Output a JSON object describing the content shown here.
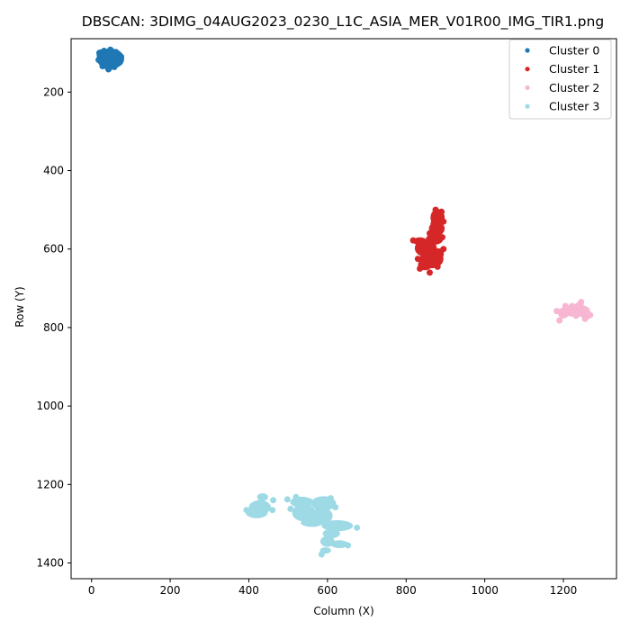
{
  "chart_data": {
    "type": "scatter",
    "title": "DBSCAN: 3DIMG_04AUG2023_0230_L1C_ASIA_MER_V01R00_IMG_TIR1.png",
    "xlabel": "Column (X)",
    "ylabel": "Row (Y)",
    "xlim": [
      -52,
      1335
    ],
    "ylim": [
      1440,
      64
    ],
    "y_inverted": true,
    "x_ticks": [
      0,
      200,
      400,
      600,
      800,
      1000,
      1200
    ],
    "y_ticks": [
      200,
      400,
      600,
      800,
      1000,
      1200,
      1400
    ],
    "grid": false,
    "legend_position": "top-right",
    "series": [
      {
        "name": "Cluster 0",
        "color": "#1f77b4",
        "blobs": [
          {
            "x": 48,
            "y": 115,
            "rx": 35,
            "ry": 26
          },
          {
            "x": 25,
            "y": 105,
            "rx": 12,
            "ry": 14
          },
          {
            "x": 45,
            "y": 130,
            "rx": 18,
            "ry": 14
          },
          {
            "x": 66,
            "y": 111,
            "rx": 13,
            "ry": 13
          }
        ],
        "points": [
          {
            "x": 20,
            "y": 100
          },
          {
            "x": 32,
            "y": 95
          },
          {
            "x": 48,
            "y": 92
          },
          {
            "x": 62,
            "y": 98
          },
          {
            "x": 75,
            "y": 110
          },
          {
            "x": 72,
            "y": 124
          },
          {
            "x": 58,
            "y": 136
          },
          {
            "x": 43,
            "y": 142
          },
          {
            "x": 28,
            "y": 134
          },
          {
            "x": 18,
            "y": 118
          },
          {
            "x": 36,
            "y": 110
          },
          {
            "x": 52,
            "y": 120
          }
        ]
      },
      {
        "name": "Cluster 1",
        "color": "#d62728",
        "blobs": [
          {
            "x": 880,
            "y": 520,
            "rx": 18,
            "ry": 22
          },
          {
            "x": 878,
            "y": 548,
            "rx": 20,
            "ry": 18
          },
          {
            "x": 872,
            "y": 575,
            "rx": 22,
            "ry": 14
          },
          {
            "x": 850,
            "y": 598,
            "rx": 28,
            "ry": 22
          },
          {
            "x": 835,
            "y": 580,
            "rx": 18,
            "ry": 10
          },
          {
            "x": 865,
            "y": 625,
            "rx": 30,
            "ry": 24
          },
          {
            "x": 848,
            "y": 640,
            "rx": 18,
            "ry": 14
          },
          {
            "x": 882,
            "y": 612,
            "rx": 14,
            "ry": 14
          }
        ],
        "points": [
          {
            "x": 875,
            "y": 500
          },
          {
            "x": 890,
            "y": 505
          },
          {
            "x": 895,
            "y": 530
          },
          {
            "x": 892,
            "y": 570
          },
          {
            "x": 895,
            "y": 600
          },
          {
            "x": 880,
            "y": 645
          },
          {
            "x": 860,
            "y": 660
          },
          {
            "x": 835,
            "y": 650
          },
          {
            "x": 830,
            "y": 625
          },
          {
            "x": 818,
            "y": 578
          },
          {
            "x": 860,
            "y": 560
          },
          {
            "x": 870,
            "y": 535
          }
        ]
      },
      {
        "name": "Cluster 2",
        "color": "#f7b6d2",
        "blobs": [
          {
            "x": 1232,
            "y": 757,
            "rx": 36,
            "ry": 16
          },
          {
            "x": 1200,
            "y": 763,
            "rx": 14,
            "ry": 14
          },
          {
            "x": 1258,
            "y": 768,
            "rx": 14,
            "ry": 12
          },
          {
            "x": 1240,
            "y": 745,
            "rx": 12,
            "ry": 10
          }
        ],
        "points": [
          {
            "x": 1183,
            "y": 758
          },
          {
            "x": 1190,
            "y": 782
          },
          {
            "x": 1205,
            "y": 745
          },
          {
            "x": 1222,
            "y": 745
          },
          {
            "x": 1245,
            "y": 735
          },
          {
            "x": 1268,
            "y": 768
          },
          {
            "x": 1255,
            "y": 778
          },
          {
            "x": 1232,
            "y": 770
          }
        ]
      },
      {
        "name": "Cluster 3",
        "color": "#9edae5",
        "blobs": [
          {
            "x": 435,
            "y": 1232,
            "rx": 14,
            "ry": 10
          },
          {
            "x": 428,
            "y": 1258,
            "rx": 28,
            "ry": 18
          },
          {
            "x": 420,
            "y": 1272,
            "rx": 28,
            "ry": 14
          },
          {
            "x": 535,
            "y": 1245,
            "rx": 30,
            "ry": 14
          },
          {
            "x": 590,
            "y": 1248,
            "rx": 32,
            "ry": 18
          },
          {
            "x": 540,
            "y": 1272,
            "rx": 30,
            "ry": 22
          },
          {
            "x": 585,
            "y": 1280,
            "rx": 28,
            "ry": 22
          },
          {
            "x": 560,
            "y": 1298,
            "rx": 28,
            "ry": 10
          },
          {
            "x": 625,
            "y": 1305,
            "rx": 40,
            "ry": 14
          },
          {
            "x": 610,
            "y": 1325,
            "rx": 22,
            "ry": 12
          },
          {
            "x": 600,
            "y": 1345,
            "rx": 18,
            "ry": 14
          },
          {
            "x": 630,
            "y": 1352,
            "rx": 22,
            "ry": 10
          },
          {
            "x": 595,
            "y": 1368,
            "rx": 14,
            "ry": 8
          }
        ],
        "points": [
          {
            "x": 394,
            "y": 1265
          },
          {
            "x": 462,
            "y": 1240
          },
          {
            "x": 498,
            "y": 1238
          },
          {
            "x": 520,
            "y": 1232
          },
          {
            "x": 608,
            "y": 1235
          },
          {
            "x": 620,
            "y": 1258
          },
          {
            "x": 675,
            "y": 1310
          },
          {
            "x": 652,
            "y": 1355
          },
          {
            "x": 585,
            "y": 1378
          },
          {
            "x": 568,
            "y": 1300
          },
          {
            "x": 506,
            "y": 1262
          },
          {
            "x": 460,
            "y": 1265
          }
        ]
      }
    ]
  }
}
